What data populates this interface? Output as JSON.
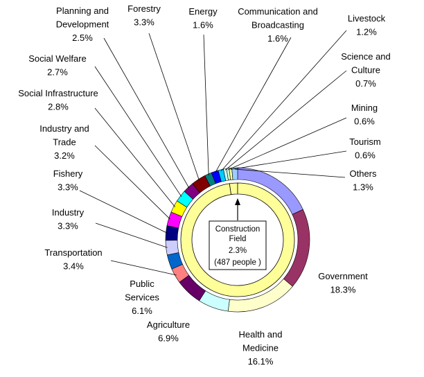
{
  "chart_data": {
    "type": "pie",
    "variant": "donut",
    "start_angle_deg": 0,
    "direction": "clockwise",
    "slices": [
      {
        "label": "Government",
        "value": 18.3,
        "value_text": "18.3%",
        "color": "#9999ff"
      },
      {
        "label": "Government",
        "value": 18.3,
        "value_text": "18.3%",
        "color": "#993366"
      },
      {
        "label": "Health and Medicine",
        "value": 16.1,
        "value_text": "16.1%",
        "color": "#ffffcc"
      },
      {
        "label": "Agriculture",
        "value": 6.9,
        "value_text": "6.9%",
        "color": "#ccffff"
      },
      {
        "label": "Public Services",
        "value": 6.1,
        "value_text": "6.1%",
        "color": "#660066"
      },
      {
        "label": "Transportation",
        "value": 3.4,
        "value_text": "3.4%",
        "color": "#ff8080"
      },
      {
        "label": "Industry",
        "value": 3.3,
        "value_text": "3.3%",
        "color": "#0066cc"
      },
      {
        "label": "Industry",
        "value": 3.3,
        "value_text": "3.3%",
        "color": "#ccccff"
      },
      {
        "label": "Fishery",
        "value": 3.3,
        "value_text": "3.3%",
        "color": "#000080"
      },
      {
        "label": "Industry and Trade",
        "value": 3.2,
        "value_text": "3.2%",
        "color": "#ff00ff"
      },
      {
        "label": "Social Infrastructure",
        "value": 2.8,
        "value_text": "2.8%",
        "color": "#ffff00"
      },
      {
        "label": "Social Welfare",
        "value": 2.7,
        "value_text": "2.7%",
        "color": "#00ffff"
      },
      {
        "label": "Planning and Development",
        "value": 2.5,
        "value_text": "2.5%",
        "color": "#800080"
      },
      {
        "label": "Forestry",
        "value": 3.3,
        "value_text": "3.3%",
        "color": "#800000"
      },
      {
        "label": "Energy",
        "value": 1.6,
        "value_text": "1.6%",
        "color": "#008080"
      },
      {
        "label": "Communication and Broadcasting",
        "value": 1.6,
        "value_text": "1.6%",
        "color": "#0000ff"
      },
      {
        "label": "Livestock",
        "value": 1.2,
        "value_text": "1.2%",
        "color": "#00ccff"
      },
      {
        "label": "Science and Culture",
        "value": 0.7,
        "value_text": "0.7%",
        "color": "#ccffff"
      },
      {
        "label": "Mining",
        "value": 0.6,
        "value_text": "0.6%",
        "color": "#ccffcc"
      },
      {
        "label": "Tourism",
        "value": 0.6,
        "value_text": "0.6%",
        "color": "#ffff99"
      },
      {
        "label": "Others",
        "value": 1.3,
        "value_text": "1.3%",
        "color": "#99ccff"
      }
    ],
    "inner_ring": {
      "slices": [
        {
          "label": "Construction Field",
          "value": 2.3,
          "color": "#ffff99"
        },
        {
          "label": "",
          "value": 97.7,
          "color": "#ffff99"
        }
      ]
    },
    "center_box": {
      "lines": [
        "Construction",
        "Field",
        "2.3%",
        "(487 people )"
      ]
    }
  },
  "labels": [
    {
      "lines": [
        "Planning and",
        "Development",
        "2.5%"
      ]
    },
    {
      "lines": [
        "Forestry",
        "3.3%"
      ]
    },
    {
      "lines": [
        "Energy",
        "1.6%"
      ]
    },
    {
      "lines": [
        "Communication and",
        "Broadcasting",
        "1.6%"
      ]
    },
    {
      "lines": [
        "Livestock",
        "1.2%"
      ]
    },
    {
      "lines": [
        "Science and",
        "Culture",
        "0.7%"
      ]
    },
    {
      "lines": [
        "Mining",
        "0.6%"
      ]
    },
    {
      "lines": [
        "Tourism",
        "0.6%"
      ]
    },
    {
      "lines": [
        "Others",
        "1.3%"
      ]
    },
    {
      "lines": [
        "Social Welfare",
        "2.7%"
      ]
    },
    {
      "lines": [
        "Social Infrastructure",
        "2.8%"
      ]
    },
    {
      "lines": [
        "Industry and",
        "Trade",
        "3.2%"
      ]
    },
    {
      "lines": [
        "Fishery",
        "3.3%"
      ]
    },
    {
      "lines": [
        "Industry",
        "3.3%"
      ]
    },
    {
      "lines": [
        "Transportation",
        "3.4%"
      ]
    },
    {
      "lines": [
        "Public",
        "Services",
        "6.1%"
      ]
    },
    {
      "lines": [
        "Agriculture",
        "6.9%"
      ]
    },
    {
      "lines": [
        "Health and",
        "Medicine",
        "16.1%"
      ]
    },
    {
      "lines": [
        "Government",
        "18.3%"
      ]
    }
  ]
}
